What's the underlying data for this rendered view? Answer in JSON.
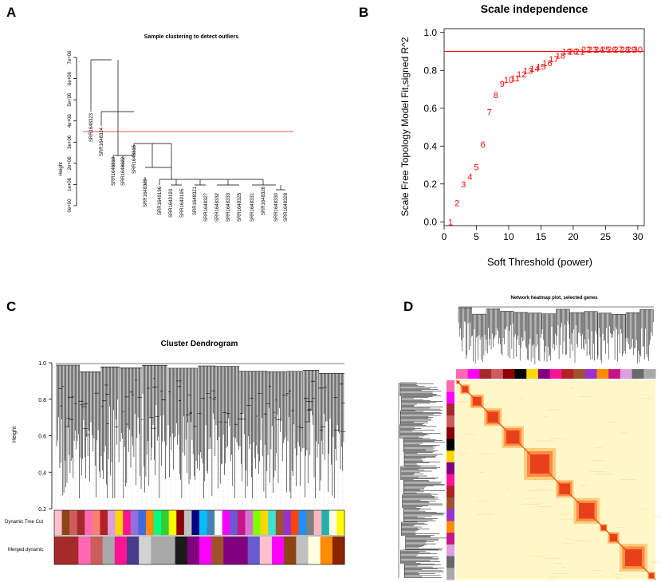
{
  "panels": {
    "a": {
      "letter": "A",
      "title": "Sample clustering to detect outliers",
      "ylabel": "Height",
      "yticks": [
        "0e+00",
        "1e+06",
        "2e+06",
        "3e+06",
        "4e+06",
        "5e+06",
        "6e+06",
        "7e+06"
      ],
      "samples": [
        "SRR1648323",
        "SRR1648324",
        "SRR1648318",
        "SRR1648322",
        "SRR1648315",
        "SRR1648329",
        "SRR1649196",
        "SRR1649193",
        "SRR1649195",
        "SRR1648321",
        "SRR1648327",
        "SRR1648332",
        "SRR1648333",
        "SRR1648325",
        "SRR1648331",
        "SRR1648326",
        "SRR1648330",
        "SRR1648328"
      ],
      "cut_height": 3500000,
      "cut_color": "#e41a1c"
    },
    "b": {
      "letter": "B",
      "title": "Scale independence",
      "xlabel": "Soft Threshold (power)",
      "ylabel": "Scale Free Topology Model Fit,signed R^2",
      "marker_color": "#ff0000"
    },
    "c": {
      "letter": "C",
      "title": "Cluster Dendrogram",
      "ylabel": "Height",
      "yticks": [
        "0.2",
        "0.4",
        "0.6",
        "0.8",
        "1.0"
      ],
      "row1_label": "Dynamic Tree Cut",
      "row2_label": "Merged dynamic",
      "row1_colors": [
        "#ffc0cb",
        "#8b4513",
        "#cd5c5c",
        "#a52a2a",
        "#ff69b4",
        "#fa8072",
        "#b22222",
        "#dda0dd",
        "#ffd700",
        "#ff1493",
        "#9370db",
        "#4169e1",
        "#ff8c00",
        "#00ff7f",
        "#32cd32",
        "#ffff00",
        "#8b0000",
        "#c0c0c0",
        "#000080",
        "#00bfff",
        "#4682b4",
        "#ffffff",
        "#ff00ff",
        "#6a5acd",
        "#c71585",
        "#da70d6",
        "#7fff00",
        "#ffd700",
        "#40e0d0",
        "#a0522d",
        "#9932cc",
        "#ff4500",
        "#1e90ff",
        "#808080",
        "#ffb6c1",
        "#20b2aa",
        "#ffffe0",
        "#ffff00"
      ],
      "row2_colors": [
        "#a52a2a",
        "#a52a2a",
        "#ff69b4",
        "#cd5c5c",
        "#a9a9a9",
        "#ff1493",
        "#483d8b",
        "#d3d3d3",
        "#a9a9a9",
        "#a9a9a9",
        "#1a1a1a",
        "#800080",
        "#ff00ff",
        "#a0522d",
        "#800080",
        "#800080",
        "#6a5acd",
        "#ffc0cb",
        "#ff00ff",
        "#8b4513",
        "#c0c0c0",
        "#ffffe0",
        "#ff8c00",
        "#8b2500"
      ]
    },
    "d": {
      "letter": "D",
      "title": "Network heatmap plot, selected genes",
      "module_colors": [
        "#ff69b4",
        "#ff00ff",
        "#a52a2a",
        "#cd5c5c",
        "#8b0000",
        "#000000",
        "#ffd700",
        "#800080",
        "#ff1493",
        "#b22222",
        "#a0522d",
        "#9932cc",
        "#ff8c00",
        "#c71585",
        "#dda0dd",
        "#696969",
        "#a9a9a9"
      ]
    }
  },
  "chart_data": [
    {
      "type": "dendrogram",
      "title": "Sample clustering to detect outliers",
      "ylabel": "Height",
      "ylim": [
        0,
        7500000
      ],
      "leaves": [
        "SRR1648323",
        "SRR1648324",
        "SRR1648318",
        "SRR1648322",
        "SRR1648315",
        "SRR1648329",
        "SRR1649196",
        "SRR1649193",
        "SRR1649195",
        "SRR1648321",
        "SRR1648327",
        "SRR1648332",
        "SRR1648333",
        "SRR1648325",
        "SRR1648331",
        "SRR1648326",
        "SRR1648330",
        "SRR1648328"
      ],
      "cut_height": 3500000
    },
    {
      "type": "scatter",
      "title": "Scale independence",
      "xlabel": "Soft Threshold (power)",
      "ylabel": "Scale Free Topology Model Fit,signed R^2",
      "xlim": [
        0,
        31
      ],
      "ylim": [
        -0.02,
        1.02
      ],
      "xticks": [
        0,
        5,
        10,
        15,
        20,
        25,
        30
      ],
      "yticks": [
        0.0,
        0.2,
        0.4,
        0.6,
        0.8,
        1.0
      ],
      "x": [
        1,
        2,
        3,
        4,
        5,
        6,
        7,
        8,
        9,
        10,
        11,
        12,
        13,
        14,
        15,
        16,
        17,
        18,
        19,
        20,
        21,
        22,
        23,
        24,
        25,
        26,
        27,
        28,
        29,
        30
      ],
      "y": [
        0.0,
        0.1,
        0.2,
        0.24,
        0.29,
        0.41,
        0.58,
        0.67,
        0.73,
        0.75,
        0.76,
        0.78,
        0.8,
        0.81,
        0.82,
        0.84,
        0.86,
        0.88,
        0.9,
        0.9,
        0.9,
        0.91,
        0.91,
        0.91,
        0.91,
        0.91,
        0.91,
        0.91,
        0.91,
        0.91
      ],
      "labels": [
        "1",
        "2",
        "3",
        "4",
        "5",
        "6",
        "7",
        "8",
        "9",
        "10",
        "11",
        "12",
        "13",
        "14",
        "15",
        "16",
        "17",
        "18",
        "19",
        "20",
        "21",
        "22",
        "23",
        "24",
        "25",
        "26",
        "27",
        "28",
        "29",
        "30"
      ],
      "hline": 0.9
    },
    {
      "type": "dendrogram",
      "title": "Cluster Dendrogram",
      "ylabel": "Height",
      "ylim": [
        0.2,
        1.0
      ],
      "color_rows": [
        "Dynamic Tree Cut",
        "Merged dynamic"
      ]
    },
    {
      "type": "heatmap",
      "title": "Network heatmap plot, selected genes",
      "blocks": [
        0.02,
        0.05,
        0.07,
        0.09,
        0.11,
        0.16,
        0.09,
        0.13,
        0.04,
        0.06,
        0.14,
        0.04
      ]
    }
  ]
}
